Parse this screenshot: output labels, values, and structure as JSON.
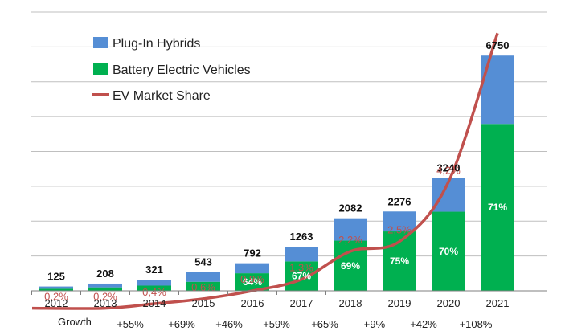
{
  "chart_data": {
    "type": "bar",
    "stacked": true,
    "categories": [
      "2012",
      "2013",
      "2014",
      "2015",
      "2016",
      "2017",
      "2018",
      "2019",
      "2020",
      "2021"
    ],
    "series": [
      {
        "name": "Battery Electric Vehicles",
        "color": "#00b050",
        "values": [
          60,
          100,
          150,
          260,
          505,
          845,
          1440,
          1705,
          2270,
          4790
        ]
      },
      {
        "name": "Plug-In Hybrids",
        "color": "#558ed5",
        "values": [
          65,
          108,
          171,
          283,
          287,
          418,
          642,
          571,
          970,
          1960
        ]
      }
    ],
    "totals": [
      "125",
      "208",
      "321",
      "543",
      "792",
      "1263",
      "2082",
      "2276",
      "3240",
      "6750"
    ],
    "bev_share_labels": [
      "",
      "",
      "",
      "",
      "64%",
      "67%",
      "69%",
      "75%",
      "70%",
      "71%"
    ],
    "line_series": {
      "name": "EV Market Share",
      "color": "#c0504d",
      "values": [
        0.2,
        0.2,
        0.4,
        0.6,
        0.9,
        1.3,
        2.2,
        2.5,
        4.2,
        8.0
      ],
      "labels": [
        "0,2%",
        "0,2%",
        "0,4%",
        "0,6%",
        "0,9%",
        "1,3%",
        "2,2%",
        "2,5%",
        "4,2%",
        ""
      ]
    },
    "growth_label": "Growth",
    "growth": [
      "+55%",
      "+69%",
      "+46%",
      "+59%",
      "+65%",
      "+9%",
      "+42%",
      "+108%"
    ],
    "ylim": [
      0,
      8000
    ],
    "legend_position": "top-left",
    "grid": true
  }
}
